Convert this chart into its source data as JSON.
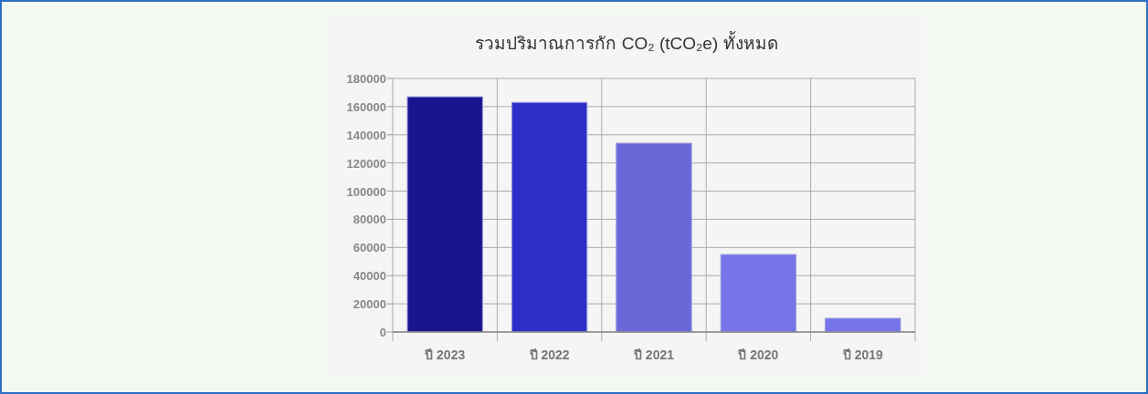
{
  "chart_data": {
    "type": "bar",
    "title": "รวมปริมาณการกัก CO₂ (tCO₂e) ทั้งหมด",
    "categories": [
      "ปี 2023",
      "ปี 2022",
      "ปี 2021",
      "ปี 2020",
      "ปี 2019"
    ],
    "values": [
      167000,
      163000,
      134000,
      55000,
      9700
    ],
    "colors": [
      "#17168f",
      "#2f2ec8",
      "#6968d9",
      "#7574ea",
      "#7574ea"
    ],
    "ylim": [
      0,
      180000
    ],
    "yticks": [
      0,
      20000,
      40000,
      60000,
      80000,
      100000,
      120000,
      140000,
      160000,
      180000
    ],
    "grid": true
  }
}
